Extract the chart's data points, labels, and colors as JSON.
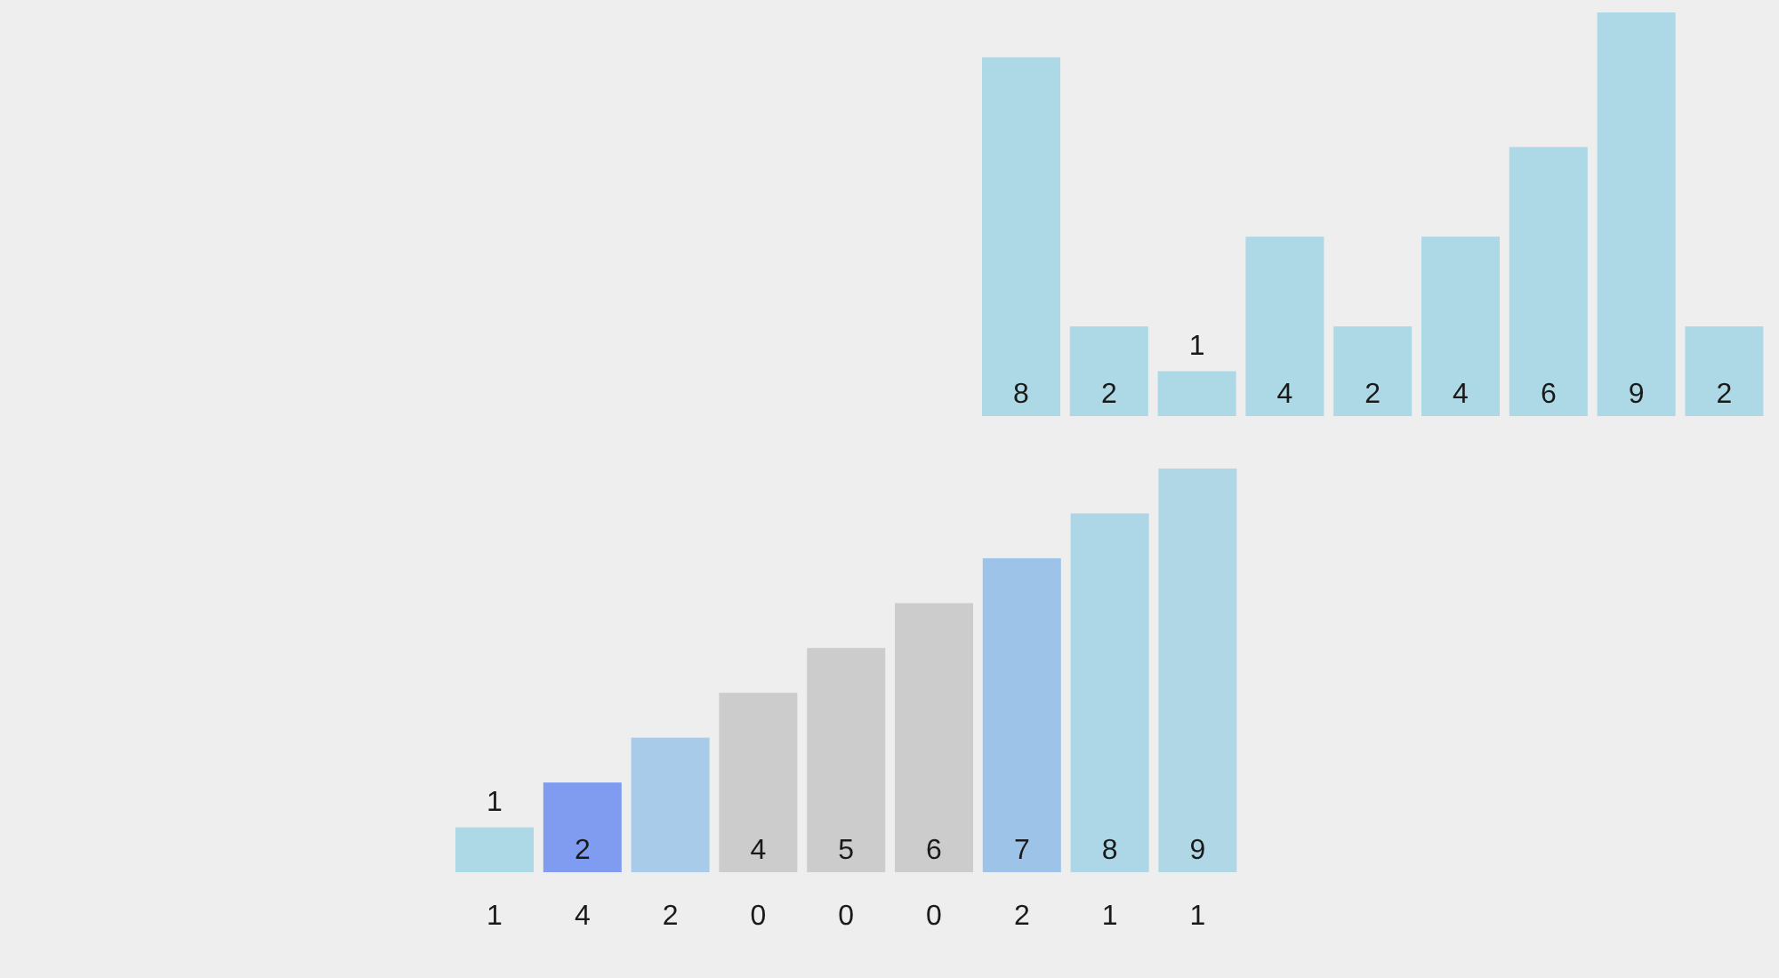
{
  "chart_data": [
    {
      "type": "bar",
      "categories": [
        null,
        null,
        null,
        null,
        null,
        null,
        null,
        null,
        null
      ],
      "values": [
        8,
        2,
        1,
        4,
        2,
        4,
        6,
        9,
        2
      ],
      "color": "#add8e6",
      "data_labels": true
    },
    {
      "type": "bar",
      "categories": [
        "1",
        "4",
        "2",
        "0",
        "0",
        "0",
        "2",
        "1",
        "1"
      ],
      "values": [
        1,
        2,
        3,
        4,
        5,
        6,
        7,
        8,
        9
      ],
      "colors": [
        "#add8e6",
        "#809cf0",
        "#a7cbe9",
        "#cccccc",
        "#cccccc",
        "#cccccc",
        "#9ec3e8",
        "#add7e6",
        "#b0d7e6"
      ],
      "value_labels": [
        "1",
        "2",
        null,
        "4",
        "5",
        "6",
        "7",
        "8",
        "9"
      ]
    }
  ]
}
